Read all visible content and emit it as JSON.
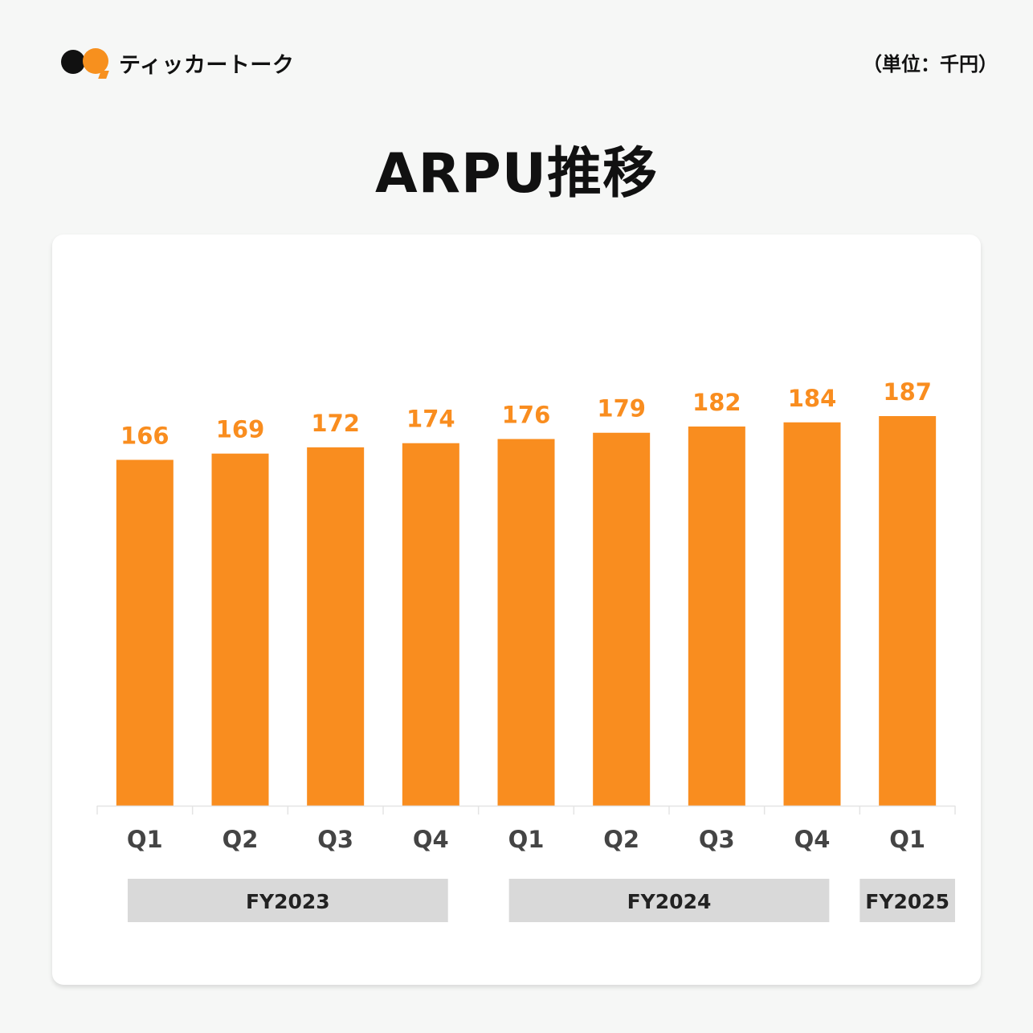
{
  "brand": {
    "name": "ティッカートーク"
  },
  "unit_label": "（単位：千円）",
  "title": "ARPU推移",
  "colors": {
    "bar": "#f98d1f",
    "label": "#f98d1f",
    "axis": "#e4e4e4",
    "fy_box": "#d9d9d9",
    "text": "#444444"
  },
  "chart_data": {
    "type": "bar",
    "title": "ARPU推移",
    "categories": [
      "Q1",
      "Q2",
      "Q3",
      "Q4",
      "Q1",
      "Q2",
      "Q3",
      "Q4",
      "Q1"
    ],
    "series": [
      {
        "values": [
          166,
          169,
          172,
          174,
          176,
          179,
          182,
          184,
          187
        ]
      }
    ],
    "groups": [
      {
        "label": "FY2023",
        "from": 0,
        "to": 3
      },
      {
        "label": "FY2024",
        "from": 4,
        "to": 7
      },
      {
        "label": "FY2025",
        "from": 8,
        "to": 8
      }
    ],
    "ylim": [
      0,
      244
    ],
    "data_labels": true,
    "grid": false
  }
}
